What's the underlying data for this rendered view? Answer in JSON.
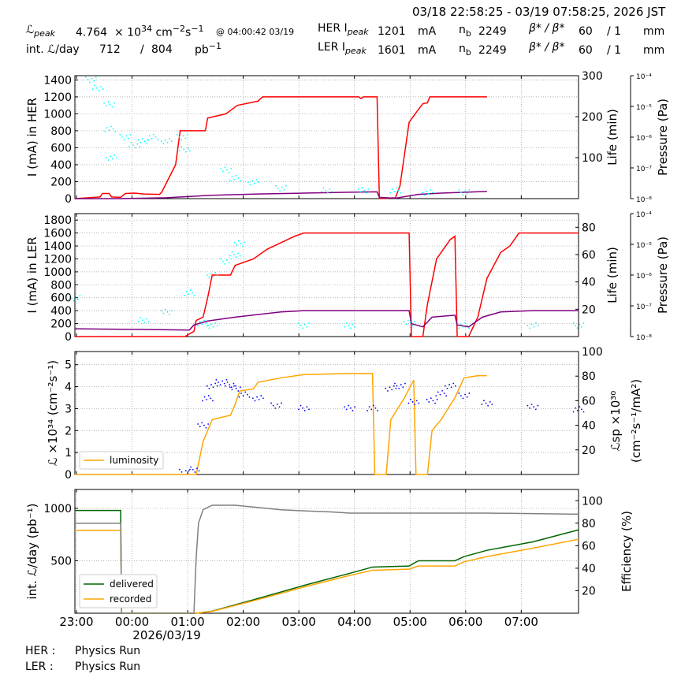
{
  "header": {
    "date_range": "03/18 22:58:25 - 03/19 07:58:25, 2026 JST",
    "lpeak_label": "ℒ",
    "lpeak_sub": "peak",
    "lpeak_mantissa": "4.764",
    "lpeak_times": "× 10",
    "lpeak_exp": "34",
    "lpeak_unit": "cm",
    "lpeak_unit_exp1": "−2",
    "lpeak_unit_s": "s",
    "lpeak_unit_exp2": "−1",
    "lpeak_time": "@ 04:00:42 03/19",
    "intl_label": "int. ℒ/day",
    "intl_value1": "712",
    "intl_sep": "/",
    "intl_value2": "804",
    "intl_unit": "pb",
    "intl_unit_exp": "−1",
    "her_label": "HER I",
    "her_sub": "peak",
    "her_current": "1201",
    "her_unit": "mA",
    "her_nb_label": "n",
    "her_nb_sub": "b",
    "her_nb": "2249",
    "her_beta": "β* / β*",
    "her_beta_sub_x": "x",
    "her_beta_sub_y": "y",
    "her_beta_x": "60",
    "her_beta_sep": "/ 1",
    "her_beta_unit": "mm",
    "ler_label": "LER I",
    "ler_sub": "peak",
    "ler_current": "1601",
    "ler_unit": "mA",
    "ler_nb_label": "n",
    "ler_nb_sub": "b",
    "ler_nb": "2249",
    "ler_beta": "β* / β*",
    "ler_beta_sub_x": "x",
    "ler_beta_sub_y": "y",
    "ler_beta_x": "60",
    "ler_beta_sep": "/ 1",
    "ler_beta_unit": "mm"
  },
  "footer": {
    "her_label": "HER :",
    "her_status": "Physics Run",
    "ler_label": "LER :",
    "ler_status": "Physics Run"
  },
  "colors": {
    "current": "#ff0000",
    "lifetime": "#00ffff",
    "pressure": "#800080",
    "luminosity": "#ffa500",
    "specific_lumi": "#0000ff",
    "delivered": "#006400",
    "recorded": "#ffa500",
    "efficiency": "#808080"
  },
  "chart_data": [
    {
      "type": "line",
      "ylabel": "I (mA) in HER",
      "ylim": [
        0,
        1450
      ],
      "yticks": [
        "0",
        "200",
        "400",
        "600",
        "800",
        "1000",
        "1200",
        "1400"
      ],
      "y2label": "Life (min)",
      "y2lim": [
        0,
        300
      ],
      "y2ticks": [
        "100",
        "200",
        "300"
      ],
      "y3label": "Pressure (Pa)",
      "y3ticks": [
        "10⁻⁸",
        "10⁻⁷",
        "10⁻⁶",
        "10⁻⁵",
        "10⁻⁴"
      ],
      "grid": true,
      "series": [
        {
          "points": [
            [
              0,
              0
            ],
            [
              0.3,
              10
            ],
            [
              0.55,
              20
            ],
            [
              0.6,
              60
            ],
            [
              0.75,
              60
            ],
            [
              0.8,
              20
            ],
            [
              1.0,
              15
            ],
            [
              1.1,
              60
            ],
            [
              1.3,
              65
            ],
            [
              1.5,
              55
            ],
            [
              1.85,
              50
            ],
            [
              1.9,
              80
            ],
            [
              2.2,
              400
            ],
            [
              2.3,
              800
            ],
            [
              2.85,
              800
            ],
            [
              2.9,
              950
            ],
            [
              3.3,
              1000
            ],
            [
              3.55,
              1100
            ],
            [
              4.0,
              1150
            ],
            [
              4.1,
              1200
            ],
            [
              6.2,
              1200
            ],
            [
              6.25,
              1180
            ],
            [
              6.3,
              1200
            ],
            [
              6.6,
              1200
            ],
            [
              6.65,
              0
            ],
            [
              7.0,
              10
            ],
            [
              7.1,
              150
            ],
            [
              7.3,
              900
            ],
            [
              7.5,
              1050
            ],
            [
              7.6,
              1120
            ],
            [
              7.7,
              1130
            ],
            [
              7.75,
              1200
            ],
            [
              9.0,
              1200
            ]
          ]
        },
        {
          "points": [
            [
              0,
              0
            ],
            [
              1.0,
              0
            ],
            [
              2.0,
              10
            ],
            [
              3.0,
              40
            ],
            [
              4.0,
              55
            ],
            [
              5.0,
              65
            ],
            [
              6.0,
              75
            ],
            [
              6.6,
              80
            ],
            [
              6.65,
              15
            ],
            [
              7.0,
              5
            ],
            [
              7.5,
              50
            ],
            [
              8.0,
              65
            ],
            [
              9.0,
              85
            ]
          ]
        },
        {
          "points": [
            [
              0.35,
              290
            ],
            [
              0.5,
              270
            ],
            [
              0.75,
              230
            ],
            [
              0.77,
              170
            ],
            [
              0.8,
              100
            ],
            [
              1.1,
              150
            ],
            [
              1.3,
              130
            ],
            [
              1.5,
              140
            ],
            [
              1.7,
              150
            ],
            [
              2.0,
              140
            ],
            [
              2.35,
              150
            ],
            [
              2.4,
              120
            ],
            [
              3.3,
              70
            ],
            [
              3.5,
              50
            ],
            [
              3.9,
              40
            ],
            [
              4.5,
              25
            ],
            [
              5.5,
              20
            ],
            [
              6.3,
              20
            ],
            [
              7.0,
              20
            ],
            [
              7.7,
              15
            ],
            [
              8.5,
              15
            ]
          ]
        }
      ]
    },
    {
      "type": "line",
      "ylabel": "I (mA) in LER",
      "ylim": [
        0,
        1900
      ],
      "yticks": [
        "0",
        "200",
        "400",
        "600",
        "800",
        "1000",
        "1200",
        "1400",
        "1600",
        "1800"
      ],
      "y2label": "Life (min)",
      "y2lim": [
        0,
        90
      ],
      "y2ticks": [
        "20",
        "40",
        "60",
        "80"
      ],
      "y3label": "Pressure (Pa)",
      "y3ticks": [
        "10⁻⁸",
        "10⁻⁷",
        "10⁻⁶",
        "10⁻⁵",
        "10⁻⁴"
      ],
      "grid": true,
      "series": [
        {
          "points": [
            [
              0,
              0
            ],
            [
              2.4,
              0
            ],
            [
              2.6,
              80
            ],
            [
              2.65,
              250
            ],
            [
              2.8,
              300
            ],
            [
              2.9,
              600
            ],
            [
              3.0,
              950
            ],
            [
              3.4,
              950
            ],
            [
              3.5,
              1100
            ],
            [
              3.9,
              1200
            ],
            [
              4.2,
              1350
            ],
            [
              4.5,
              1450
            ],
            [
              4.8,
              1550
            ],
            [
              5.0,
              1600
            ],
            [
              7.3,
              1600
            ],
            [
              7.35,
              0
            ],
            [
              7.6,
              0
            ],
            [
              7.7,
              500
            ],
            [
              7.9,
              1200
            ],
            [
              8.2,
              1500
            ],
            [
              8.3,
              1550
            ],
            [
              8.35,
              0
            ],
            [
              8.6,
              0
            ],
            [
              8.8,
              300
            ],
            [
              9.0,
              900
            ],
            [
              9.3,
              1300
            ],
            [
              9.5,
              1400
            ],
            [
              9.6,
              1500
            ],
            [
              9.7,
              1600
            ],
            [
              11.0,
              1600
            ]
          ]
        },
        {
          "points": [
            [
              0,
              120
            ],
            [
              1.5,
              110
            ],
            [
              2.5,
              100
            ],
            [
              2.6,
              180
            ],
            [
              2.9,
              240
            ],
            [
              3.5,
              300
            ],
            [
              4.5,
              380
            ],
            [
              5.0,
              400
            ],
            [
              7.3,
              400
            ],
            [
              7.35,
              200
            ],
            [
              7.6,
              150
            ],
            [
              7.8,
              300
            ],
            [
              8.3,
              330
            ],
            [
              8.35,
              180
            ],
            [
              8.6,
              150
            ],
            [
              8.9,
              300
            ],
            [
              9.3,
              380
            ],
            [
              10.0,
              400
            ],
            [
              11.0,
              400
            ]
          ]
        },
        {
          "points": [
            [
              0,
              28
            ],
            [
              1.5,
              12
            ],
            [
              2.0,
              18
            ],
            [
              2.5,
              32
            ],
            [
              3.0,
              45
            ],
            [
              3.3,
              55
            ],
            [
              3.5,
              60
            ],
            [
              3.6,
              68
            ],
            [
              2.8,
              10
            ],
            [
              3.0,
              8
            ],
            [
              5.0,
              8
            ],
            [
              6.0,
              8
            ],
            [
              7.3,
              10
            ],
            [
              8.5,
              8
            ],
            [
              10.0,
              8
            ],
            [
              11.0,
              8
            ]
          ]
        }
      ]
    },
    {
      "type": "line",
      "ylabel": "ℒ ×10³⁴ (cm⁻²s⁻¹)",
      "ylim": [
        0,
        5.6
      ],
      "yticks": [
        "0",
        "1",
        "2",
        "3",
        "4",
        "5"
      ],
      "y2label": "ℒsp ×10³⁰ (cm⁻²s⁻¹/mA²)",
      "y2lim": [
        0,
        100
      ],
      "y2ticks": [
        "20",
        "40",
        "60",
        "80",
        "100"
      ],
      "legend": "bottom-left",
      "grid": true,
      "series": [
        {
          "name": "luminosity",
          "points": [
            [
              0,
              0
            ],
            [
              2.65,
              0
            ],
            [
              2.7,
              0.5
            ],
            [
              2.8,
              1.5
            ],
            [
              3.0,
              2.5
            ],
            [
              3.4,
              2.7
            ],
            [
              3.5,
              3.2
            ],
            [
              3.6,
              3.8
            ],
            [
              3.9,
              3.9
            ],
            [
              4.0,
              4.2
            ],
            [
              4.5,
              4.4
            ],
            [
              5.0,
              4.55
            ],
            [
              6.0,
              4.6
            ],
            [
              6.5,
              4.6
            ],
            [
              6.55,
              0
            ],
            [
              6.8,
              0
            ],
            [
              6.9,
              2.5
            ],
            [
              7.2,
              3.5
            ],
            [
              7.4,
              4.3
            ],
            [
              7.45,
              0
            ],
            [
              7.7,
              0
            ],
            [
              7.8,
              2.0
            ],
            [
              8.0,
              2.5
            ],
            [
              8.3,
              3.5
            ],
            [
              8.5,
              4.4
            ],
            [
              8.8,
              4.5
            ],
            [
              9.0,
              4.5
            ]
          ]
        },
        {
          "points": [
            [
              2.4,
              2
            ],
            [
              2.6,
              4
            ],
            [
              2.8,
              40
            ],
            [
              2.9,
              62
            ],
            [
              3.0,
              72
            ],
            [
              3.2,
              75
            ],
            [
              3.4,
              73
            ],
            [
              3.5,
              70
            ],
            [
              3.7,
              65
            ],
            [
              4.0,
              62
            ],
            [
              4.4,
              56
            ],
            [
              5.0,
              54
            ],
            [
              6.0,
              54
            ],
            [
              6.5,
              54
            ],
            [
              6.9,
              70
            ],
            [
              7.1,
              72
            ],
            [
              7.4,
              59
            ],
            [
              7.8,
              60
            ],
            [
              8.0,
              66
            ],
            [
              8.2,
              72
            ],
            [
              8.5,
              64
            ],
            [
              9.0,
              58
            ],
            [
              10.0,
              55
            ],
            [
              11.0,
              53
            ]
          ]
        }
      ]
    },
    {
      "type": "line",
      "ylabel": "int. ℒ/day (pb⁻¹)",
      "ylim": [
        0,
        1180
      ],
      "yticks": [
        "500",
        "1000"
      ],
      "y2label": "Efficiency (%)",
      "y2lim": [
        0,
        110
      ],
      "y2ticks": [
        "20",
        "40",
        "60",
        "80",
        "100"
      ],
      "legend": "bottom-left",
      "grid": true,
      "x": [
        "23:00",
        "00:00",
        "01:00",
        "02:00",
        "03:00",
        "04:00",
        "05:00",
        "06:00",
        "07:00"
      ],
      "xsub": "2026/03/19",
      "series": [
        {
          "name": "delivered",
          "points": [
            [
              0,
              980
            ],
            [
              1.0,
              980
            ],
            [
              1.02,
              0
            ],
            [
              2.65,
              0
            ],
            [
              3.0,
              20
            ],
            [
              4.0,
              140
            ],
            [
              5.0,
              265
            ],
            [
              6.0,
              380
            ],
            [
              6.5,
              440
            ],
            [
              7.3,
              450
            ],
            [
              7.5,
              500
            ],
            [
              8.3,
              500
            ],
            [
              8.5,
              540
            ],
            [
              9.0,
              600
            ],
            [
              10.0,
              680
            ],
            [
              11.0,
              795
            ]
          ]
        },
        {
          "name": "recorded",
          "points": [
            [
              0,
              790
            ],
            [
              1.0,
              790
            ],
            [
              1.02,
              0
            ],
            [
              2.65,
              0
            ],
            [
              3.0,
              18
            ],
            [
              4.0,
              130
            ],
            [
              5.0,
              250
            ],
            [
              6.0,
              360
            ],
            [
              6.5,
              410
            ],
            [
              7.3,
              420
            ],
            [
              7.5,
              450
            ],
            [
              8.3,
              450
            ],
            [
              8.5,
              490
            ],
            [
              9.0,
              540
            ],
            [
              10.0,
              620
            ],
            [
              11.0,
              705
            ]
          ]
        },
        {
          "points": [
            [
              0,
              80
            ],
            [
              1.0,
              80
            ],
            [
              1.02,
              0
            ],
            [
              2.6,
              0
            ],
            [
              2.65,
              50
            ],
            [
              2.7,
              80
            ],
            [
              2.8,
              92
            ],
            [
              3.0,
              96
            ],
            [
              3.5,
              96
            ],
            [
              4.0,
              94
            ],
            [
              4.5,
              92
            ],
            [
              5.0,
              91
            ],
            [
              5.6,
              90
            ],
            [
              6.0,
              89
            ],
            [
              7.0,
              89
            ],
            [
              8.0,
              89
            ],
            [
              9.0,
              89
            ],
            [
              11.0,
              88
            ]
          ]
        }
      ]
    }
  ]
}
